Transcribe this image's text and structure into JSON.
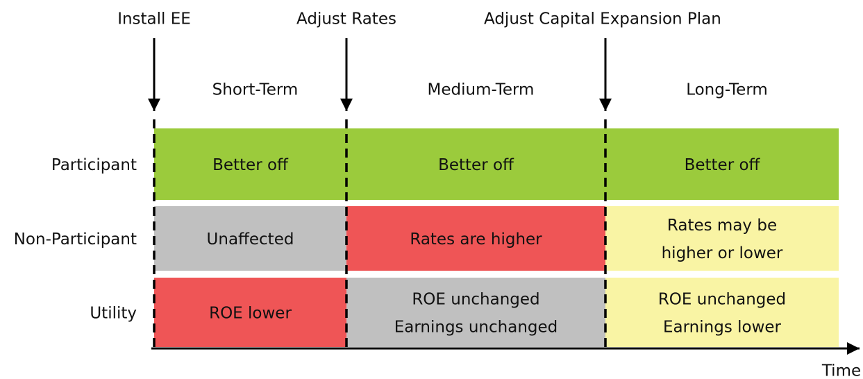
{
  "events": [
    {
      "label": "Install EE"
    },
    {
      "label": "Adjust Rates"
    },
    {
      "label": "Adjust Capital Expansion Plan"
    }
  ],
  "phases": [
    "Short-Term",
    "Medium-Term",
    "Long-Term"
  ],
  "rows": [
    {
      "label": "Participant",
      "cells": [
        {
          "lines": [
            "Better off"
          ],
          "color": "#9bcb3c"
        },
        {
          "lines": [
            "Better off"
          ],
          "color": "#9bcb3c"
        },
        {
          "lines": [
            "Better off"
          ],
          "color": "#9bcb3c"
        }
      ]
    },
    {
      "label": "Non-Participant",
      "cells": [
        {
          "lines": [
            "Unaffected"
          ],
          "color": "#c0c0c0"
        },
        {
          "lines": [
            "Rates are higher"
          ],
          "color": "#ef5556"
        },
        {
          "lines": [
            "Rates may be",
            "higher or lower"
          ],
          "color": "#f9f4a4"
        }
      ]
    },
    {
      "label": "Utility",
      "cells": [
        {
          "lines": [
            "ROE lower"
          ],
          "color": "#ef5556"
        },
        {
          "lines": [
            "ROE unchanged",
            "Earnings unchanged"
          ],
          "color": "#c0c0c0"
        },
        {
          "lines": [
            "ROE unchanged",
            "Earnings lower"
          ],
          "color": "#f9f4a4"
        }
      ]
    }
  ],
  "axis_label": "Time"
}
